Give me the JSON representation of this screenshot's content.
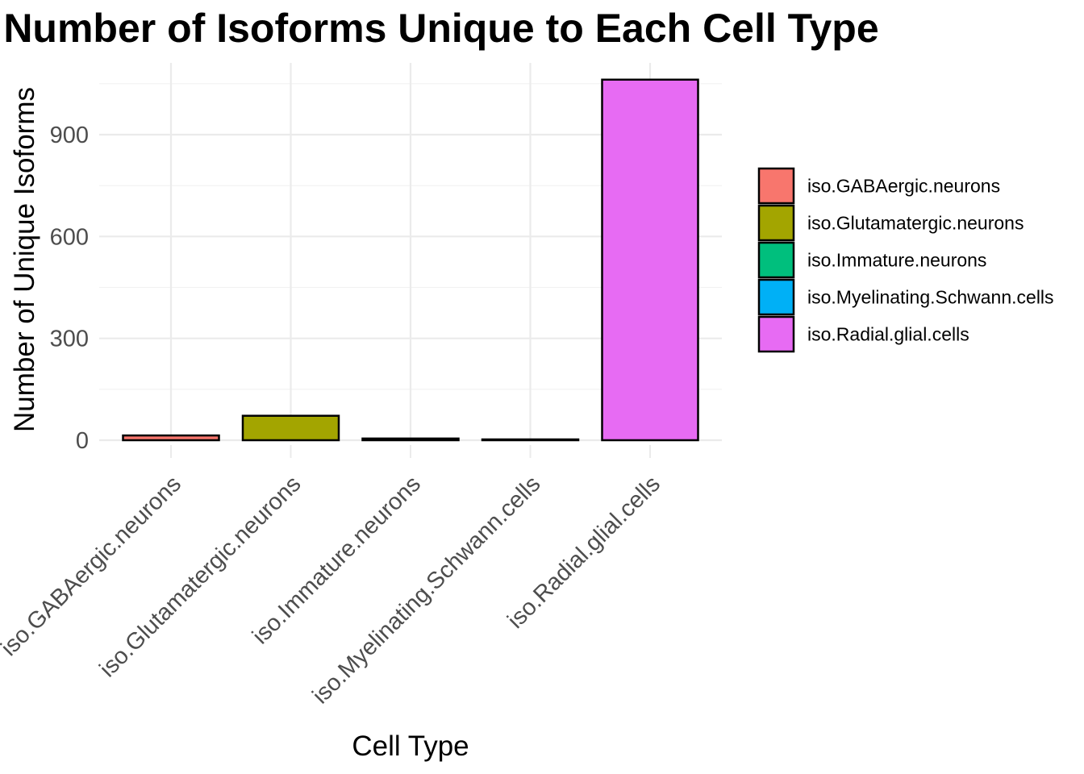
{
  "chart_data": {
    "type": "bar",
    "title": "Number of Isoforms Unique to Each Cell Type",
    "xlabel": "Cell Type",
    "ylabel": "Number of Unique Isoforms",
    "categories": [
      "iso.GABAergic.neurons",
      "iso.Glutamatergic.neurons",
      "iso.Immature.neurons",
      "iso.Myelinating.Schwann.cells",
      "iso.Radial.glial.cells"
    ],
    "values": [
      14,
      72,
      5,
      1,
      1062
    ],
    "colors": [
      "#F8766D",
      "#A3A500",
      "#00BF7D",
      "#00B0F6",
      "#E76BF3"
    ],
    "ylim": [
      0,
      1065
    ],
    "yticks": [
      0,
      300,
      600,
      900
    ],
    "grid": true,
    "legend": {
      "position": "right",
      "entries": [
        "iso.GABAergic.neurons",
        "iso.Glutamatergic.neurons",
        "iso.Immature.neurons",
        "iso.Myelinating.Schwann.cells",
        "iso.Radial.glial.cells"
      ]
    }
  }
}
